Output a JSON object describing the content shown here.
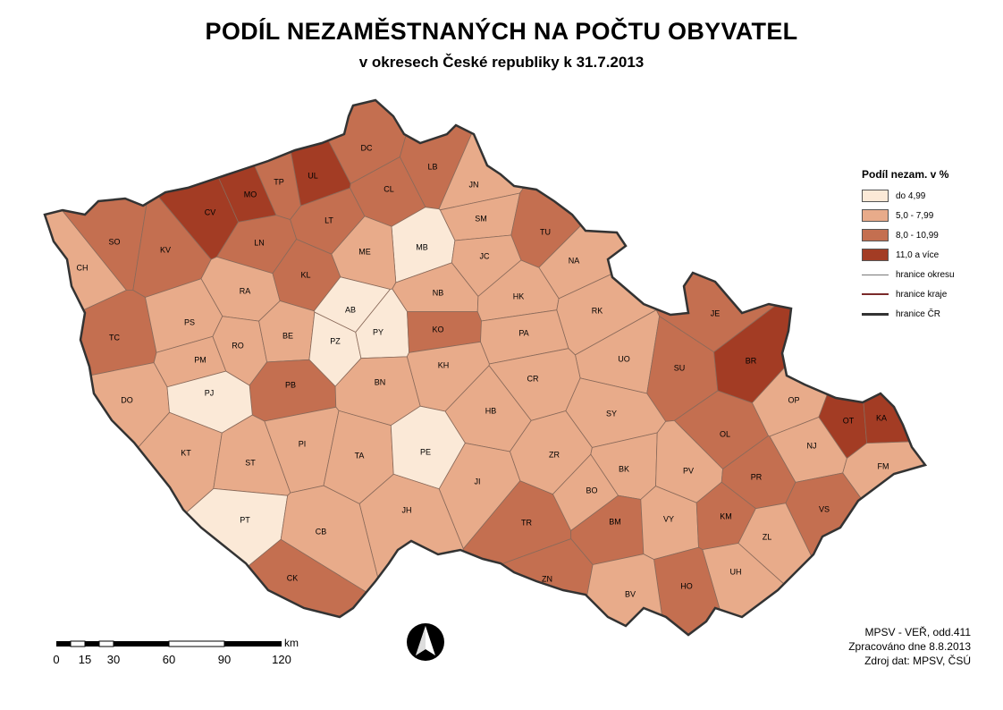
{
  "title": "PODÍL NEZAMĚSTNANÝCH NA POČTU OBYVATEL",
  "subtitle": "v okresech České republiky k 31.7.2013",
  "legend": {
    "title": "Podíl nezam. v %",
    "classes": [
      {
        "label": "do 4,99",
        "color": "#fbe9d7"
      },
      {
        "label": "5,0 - 7,99",
        "color": "#e8ab8a"
      },
      {
        "label": "8,0 - 10,99",
        "color": "#c46f50"
      },
      {
        "label": "11,0 a více",
        "color": "#a33c24"
      }
    ],
    "lines": [
      {
        "label": "hranice okresu",
        "color": "#777777"
      },
      {
        "label": "hranice kraje",
        "color": "#7a2a2a"
      },
      {
        "label": "hranice ČR",
        "color": "#333333"
      }
    ]
  },
  "districts": [
    {
      "code": "CH",
      "class": 1
    },
    {
      "code": "SO",
      "class": 2
    },
    {
      "code": "KV",
      "class": 2
    },
    {
      "code": "CV",
      "class": 3
    },
    {
      "code": "MO",
      "class": 3
    },
    {
      "code": "TP",
      "class": 2
    },
    {
      "code": "UL",
      "class": 3
    },
    {
      "code": "DC",
      "class": 2
    },
    {
      "code": "LB",
      "class": 2
    },
    {
      "code": "JN",
      "class": 1
    },
    {
      "code": "CL",
      "class": 2
    },
    {
      "code": "LT",
      "class": 2
    },
    {
      "code": "LN",
      "class": 2
    },
    {
      "code": "SM",
      "class": 1
    },
    {
      "code": "MB",
      "class": 0
    },
    {
      "code": "ME",
      "class": 1
    },
    {
      "code": "TU",
      "class": 2
    },
    {
      "code": "JC",
      "class": 1
    },
    {
      "code": "NA",
      "class": 1
    },
    {
      "code": "TC",
      "class": 2
    },
    {
      "code": "RA",
      "class": 1
    },
    {
      "code": "KL",
      "class": 2
    },
    {
      "code": "NB",
      "class": 1
    },
    {
      "code": "HK",
      "class": 1
    },
    {
      "code": "RK",
      "class": 1
    },
    {
      "code": "JE",
      "class": 2
    },
    {
      "code": "PS",
      "class": 1
    },
    {
      "code": "AB",
      "class": 0
    },
    {
      "code": "RO",
      "class": 1
    },
    {
      "code": "BE",
      "class": 1
    },
    {
      "code": "PZ",
      "class": 0
    },
    {
      "code": "PY",
      "class": 0
    },
    {
      "code": "KO",
      "class": 2
    },
    {
      "code": "PA",
      "class": 1
    },
    {
      "code": "UO",
      "class": 1
    },
    {
      "code": "SU",
      "class": 2
    },
    {
      "code": "BR",
      "class": 3
    },
    {
      "code": "PM",
      "class": 1
    },
    {
      "code": "PB",
      "class": 2
    },
    {
      "code": "KH",
      "class": 1
    },
    {
      "code": "CR",
      "class": 1
    },
    {
      "code": "DO",
      "class": 1
    },
    {
      "code": "PJ",
      "class": 0
    },
    {
      "code": "BN",
      "class": 1
    },
    {
      "code": "HB",
      "class": 1
    },
    {
      "code": "SY",
      "class": 1
    },
    {
      "code": "OP",
      "class": 1
    },
    {
      "code": "OT",
      "class": 3
    },
    {
      "code": "KA",
      "class": 3
    },
    {
      "code": "OL",
      "class": 2
    },
    {
      "code": "NJ",
      "class": 1
    },
    {
      "code": "KT",
      "class": 1
    },
    {
      "code": "PI",
      "class": 1
    },
    {
      "code": "TA",
      "class": 1
    },
    {
      "code": "PE",
      "class": 0
    },
    {
      "code": "ZR",
      "class": 1
    },
    {
      "code": "BK",
      "class": 1
    },
    {
      "code": "PV",
      "class": 1
    },
    {
      "code": "FM",
      "class": 1
    },
    {
      "code": "ST",
      "class": 1
    },
    {
      "code": "JI",
      "class": 1
    },
    {
      "code": "BO",
      "class": 1
    },
    {
      "code": "PR",
      "class": 2
    },
    {
      "code": "VS",
      "class": 2
    },
    {
      "code": "PT",
      "class": 0
    },
    {
      "code": "JH",
      "class": 1
    },
    {
      "code": "TR",
      "class": 2
    },
    {
      "code": "BM",
      "class": 2
    },
    {
      "code": "VY",
      "class": 1
    },
    {
      "code": "KM",
      "class": 2
    },
    {
      "code": "ZL",
      "class": 1
    },
    {
      "code": "CB",
      "class": 1
    },
    {
      "code": "CK",
      "class": 2
    },
    {
      "code": "ZN",
      "class": 2
    },
    {
      "code": "UH",
      "class": 1
    },
    {
      "code": "HO",
      "class": 2
    },
    {
      "code": "BV",
      "class": 1
    }
  ],
  "scale": {
    "unit": "km",
    "ticks": [
      "0",
      "15",
      "30",
      "60",
      "90",
      "120"
    ]
  },
  "credits": [
    "MPSV - VEŘ, odd.411",
    "Zpracováno dne 8.8.2013",
    "Zdroj dat: MPSV, ČSÚ"
  ],
  "north_arrow": "north-arrow-icon"
}
